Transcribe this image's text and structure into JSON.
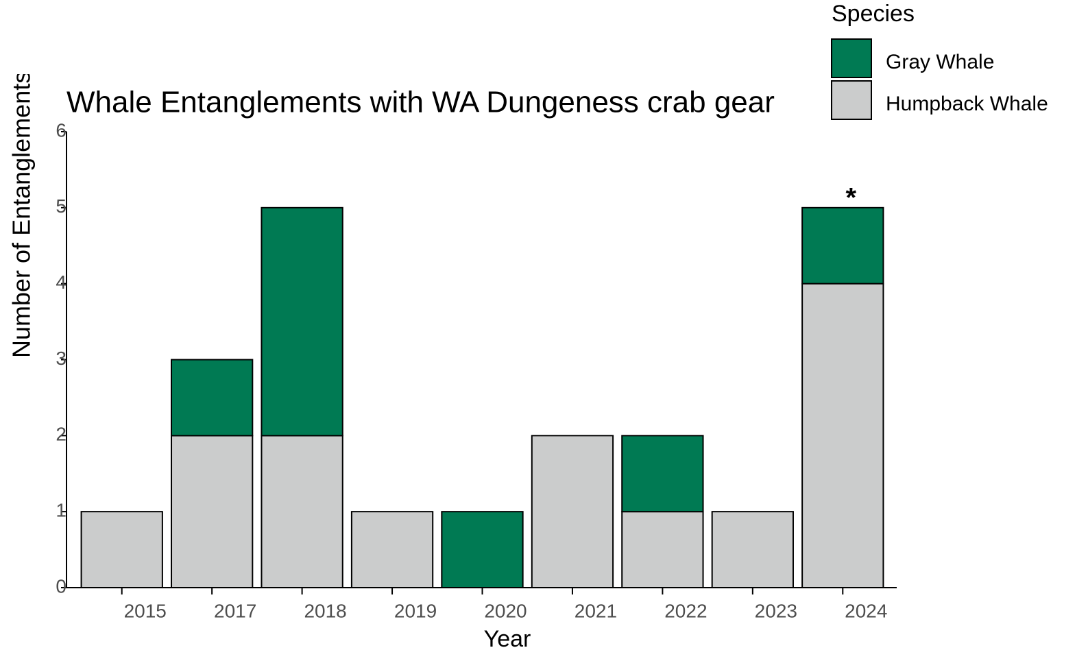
{
  "chart_data": {
    "type": "stacked_bar",
    "title": "Whale Entanglements with WA Dungeness crab gear",
    "x_label": "Year",
    "y_label": "Number of Entanglements",
    "legend_title": "Species",
    "annotation": "*",
    "categories": [
      "2015",
      "2017",
      "2018",
      "2019",
      "2020",
      "2021",
      "2022",
      "2023",
      "2024"
    ],
    "series": [
      {
        "name": "Humpback Whale",
        "color": "#cbcccc",
        "values": [
          1,
          2,
          2,
          1,
          0,
          2,
          1,
          1,
          4
        ]
      },
      {
        "name": "Gray Whale",
        "color": "#007a53",
        "values": [
          0,
          1,
          3,
          0,
          1,
          0,
          1,
          0,
          1
        ]
      }
    ],
    "ylim": [
      0,
      6
    ],
    "yticks": [
      0,
      1,
      2,
      3,
      4,
      5,
      6
    ],
    "grid": false
  }
}
